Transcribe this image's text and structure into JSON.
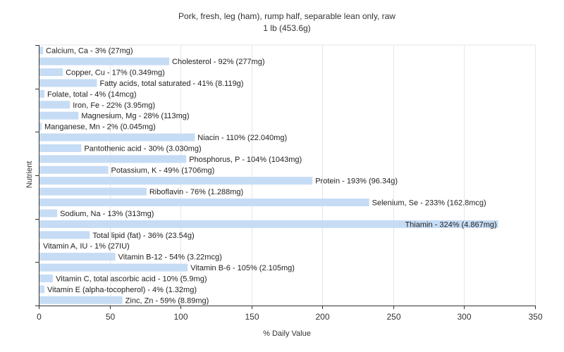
{
  "chart_data": {
    "type": "bar",
    "orientation": "horizontal",
    "title": "Pork, fresh, leg (ham), rump half, separable lean only, raw",
    "subtitle": "1 lb (453.6g)",
    "xlabel": "% Daily Value",
    "ylabel": "Nutrient",
    "xlim": [
      0,
      350
    ],
    "xticks": [
      0,
      50,
      100,
      150,
      200,
      250,
      300,
      350
    ],
    "grid": true,
    "bar_color": "#c6dcf5",
    "categories": [
      "Calcium, Ca",
      "Cholesterol",
      "Copper, Cu",
      "Fatty acids, total saturated",
      "Folate, total",
      "Iron, Fe",
      "Magnesium, Mg",
      "Manganese, Mn",
      "Niacin",
      "Pantothenic acid",
      "Phosphorus, P",
      "Potassium, K",
      "Protein",
      "Riboflavin",
      "Selenium, Se",
      "Sodium, Na",
      "Thiamin",
      "Total lipid (fat)",
      "Vitamin A, IU",
      "Vitamin B-12",
      "Vitamin B-6",
      "Vitamin C, total ascorbic acid",
      "Vitamin E (alpha-tocopherol)",
      "Zinc, Zn"
    ],
    "values": [
      3,
      92,
      17,
      41,
      4,
      22,
      28,
      2,
      110,
      30,
      104,
      49,
      193,
      76,
      233,
      13,
      324,
      36,
      1,
      54,
      105,
      10,
      4,
      59
    ],
    "labels": [
      "Calcium, Ca - 3% (27mg)",
      "Cholesterol - 92% (277mg)",
      "Copper, Cu - 17% (0.349mg)",
      "Fatty acids, total saturated - 41% (8.119g)",
      "Folate, total - 4% (14mcg)",
      "Iron, Fe - 22% (3.95mg)",
      "Magnesium, Mg - 28% (113mg)",
      "Manganese, Mn - 2% (0.045mg)",
      "Niacin - 110% (22.040mg)",
      "Pantothenic acid - 30% (3.030mg)",
      "Phosphorus, P - 104% (1043mg)",
      "Potassium, K - 49% (1706mg)",
      "Protein - 193% (96.34g)",
      "Riboflavin - 76% (1.288mg)",
      "Selenium, Se - 233% (162.8mcg)",
      "Sodium, Na - 13% (313mg)",
      "Thiamin - 324% (4.867mg)",
      "Total lipid (fat) - 36% (23.54g)",
      "Vitamin A, IU - 1% (27IU)",
      "Vitamin B-12 - 54% (3.22mcg)",
      "Vitamin B-6 - 105% (2.105mg)",
      "Vitamin C, total ascorbic acid - 10% (5.9mg)",
      "Vitamin E (alpha-tocopherol) - 4% (1.32mg)",
      "Zinc, Zn - 59% (8.89mg)"
    ]
  }
}
